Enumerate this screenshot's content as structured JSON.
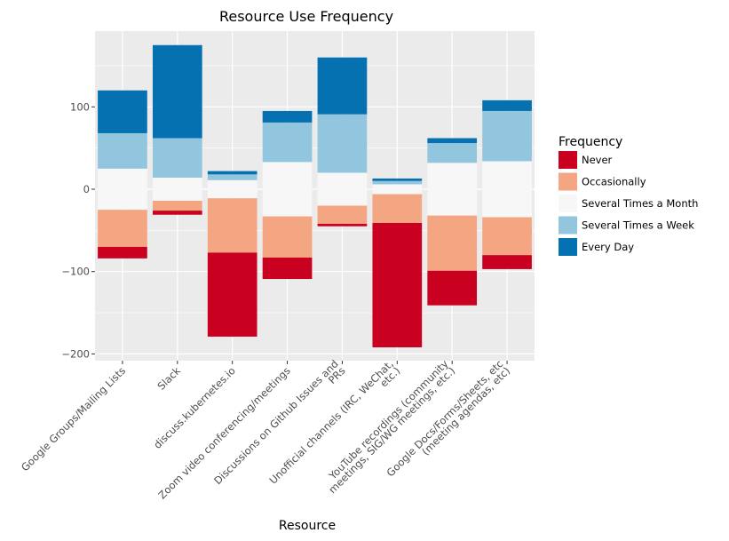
{
  "chart_data": {
    "type": "bar",
    "stacked": "diverging",
    "title": "Resource Use Frequency",
    "xlabel": "Resource",
    "ylabel": "",
    "ylim": [
      -205,
      190
    ],
    "yticks": [
      -200,
      -100,
      0,
      100
    ],
    "ytick_labels": [
      "−200",
      "−100",
      "0",
      "100"
    ],
    "grid": true,
    "legend_position": "right",
    "legend_title": "Frequency",
    "categories": [
      [
        "Google Groups/Mailing Lists"
      ],
      [
        "Slack"
      ],
      [
        "discuss.kubernetes.io"
      ],
      [
        "Zoom video conferencing/meetings"
      ],
      [
        "Discussions on Github Issues and",
        "PRs"
      ],
      [
        "Unofficial channels (IRC, WeChat,",
        "etc.)"
      ],
      [
        "YouTube recordings (community",
        "meetings, SIG/WG meetings, etc.)"
      ],
      [
        "Google Docs/Forms/Sheets, etc",
        "(meeting agendas, etc)"
      ]
    ],
    "series": [
      {
        "name": "Never",
        "color": "#ca0020",
        "values": [
          14,
          5,
          102,
          26,
          3,
          151,
          42,
          17
        ]
      },
      {
        "name": "Occasionally",
        "color": "#f4a582",
        "values": [
          45,
          12,
          66,
          50,
          22,
          35,
          67,
          46
        ]
      },
      {
        "name": "Several Times a Month",
        "color": "#f7f7f7",
        "values": [
          50,
          28,
          22,
          66,
          40,
          12,
          64,
          68
        ]
      },
      {
        "name": "Several Times a Week",
        "color": "#92c5de",
        "values": [
          43,
          48,
          7,
          48,
          71,
          4,
          24,
          61
        ]
      },
      {
        "name": "Every Day",
        "color": "#0571b0",
        "values": [
          52,
          113,
          4,
          14,
          69,
          3,
          6,
          13
        ]
      }
    ]
  }
}
